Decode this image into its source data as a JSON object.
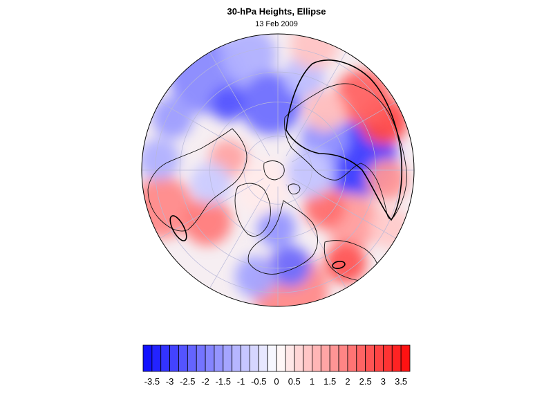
{
  "header": {
    "title": "30-hPa Heights, Ellipse",
    "date": "13 Feb 2009"
  },
  "colorbar": {
    "levels": [
      -3.75,
      -3.5,
      -3.25,
      -3,
      -2.75,
      -2.5,
      -2.25,
      -2,
      -1.75,
      -1.5,
      -1.25,
      -1,
      -0.75,
      -0.5,
      -0.25,
      0,
      0.25,
      0.5,
      0.75,
      1,
      1.25,
      1.5,
      1.75,
      2,
      2.25,
      2.5,
      2.75,
      3,
      3.25,
      3.5,
      3.75
    ],
    "tick_values": [
      -3.5,
      -3,
      -2.5,
      -2,
      -1.5,
      -1,
      -0.5,
      0,
      0.5,
      1,
      1.5,
      2,
      2.5,
      3,
      3.5
    ],
    "tick_labels": [
      "-3.5",
      "-3",
      "-2.5",
      "-2",
      "-1.5",
      "-1",
      "-0.5",
      "0",
      "0.5",
      "1",
      "1.5",
      "2",
      "2.5",
      "3",
      "3.5"
    ],
    "color_min": "#0a0aff",
    "color_mid": "#ffffff",
    "color_max": "#ff0a0a"
  },
  "map": {
    "projection": "polar stereographic (north pole)",
    "field": "standardized 30-hPa height anomaly",
    "features": [
      "coastlines",
      "lat-lon graticule",
      "vortex ellipse contours"
    ],
    "outline_color": "#000000",
    "grid_color": "#b8b8d8"
  }
}
